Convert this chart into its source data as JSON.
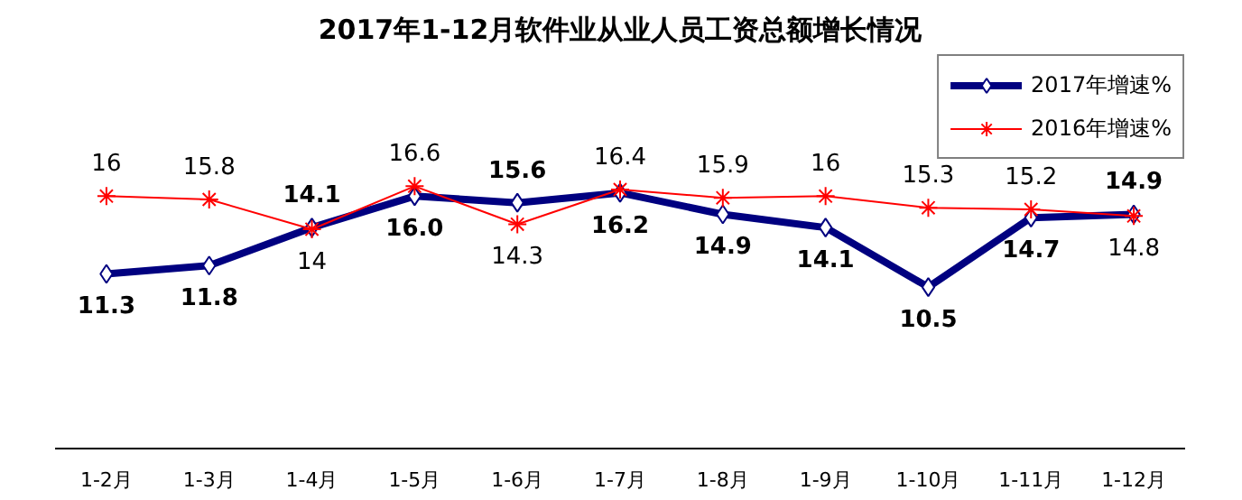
{
  "chart_data": {
    "type": "line",
    "title": "2017年1-12月软件业从业人员工资总额增长情况",
    "categories": [
      "1-2月",
      "1-3月",
      "1-4月",
      "1-5月",
      "1-6月",
      "1-7月",
      "1-8月",
      "1-9月",
      "1-10月",
      "1-11月",
      "1-12月"
    ],
    "data_labels": true,
    "legend": "top right",
    "grid": false,
    "series": [
      {
        "name": "2017年增速%",
        "color": "#000080",
        "marker": "diamond",
        "values": [
          11.3,
          11.8,
          14.1,
          16.0,
          15.6,
          16.2,
          14.9,
          14.1,
          10.5,
          14.7,
          14.9
        ],
        "value_labels": [
          "11.3",
          "11.8",
          "14.1",
          "16.0",
          "15.6",
          "16.2",
          "14.9",
          "14.1",
          "10.5",
          "14.7",
          "14.9"
        ]
      },
      {
        "name": "2016年增速%",
        "color": "#ff0000",
        "marker": "cross",
        "values": [
          16,
          15.8,
          14,
          16.6,
          14.3,
          16.4,
          15.9,
          16,
          15.3,
          15.2,
          14.8
        ],
        "value_labels": [
          "16",
          "15.8",
          "14",
          "16.6",
          "14.3",
          "16.4",
          "15.9",
          "16",
          "15.3",
          "15.2",
          "14.8"
        ]
      }
    ]
  }
}
